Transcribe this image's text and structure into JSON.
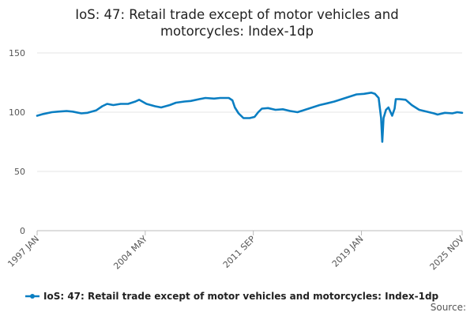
{
  "chart_data": {
    "type": "line",
    "title_lines": [
      "IoS: 47: Retail trade except of motor vehicles and",
      "motorcycles: Index-1dp"
    ],
    "xlabel": "",
    "ylabel": "",
    "ylim": [
      0,
      150
    ],
    "y_ticks": [
      0,
      50,
      100,
      150
    ],
    "x_range": [
      "1997-01",
      "2025-11"
    ],
    "x_ticks": [
      {
        "label": "1997 JAN",
        "date": "1997-01"
      },
      {
        "label": "2004 MAY",
        "date": "2004-05"
      },
      {
        "label": "2011 SEP",
        "date": "2011-09"
      },
      {
        "label": "2019 JAN",
        "date": "2019-01"
      },
      {
        "label": "2025 NOV",
        "date": "2025-11"
      }
    ],
    "grid": true,
    "legend_position": "bottom",
    "series": [
      {
        "name": "IoS: 47: Retail trade except of motor vehicles and motorcycles: Index-1dp",
        "color": "#0a7ec2",
        "points": [
          [
            "1997-01",
            97.0
          ],
          [
            "1997-06",
            98.5
          ],
          [
            "1998-01",
            100.0
          ],
          [
            "1998-06",
            100.5
          ],
          [
            "1999-01",
            101.0
          ],
          [
            "1999-06",
            100.5
          ],
          [
            "2000-01",
            99.0
          ],
          [
            "2000-06",
            99.5
          ],
          [
            "2001-01",
            101.5
          ],
          [
            "2001-06",
            105.0
          ],
          [
            "2001-10",
            107.0
          ],
          [
            "2002-03",
            106.0
          ],
          [
            "2002-09",
            107.0
          ],
          [
            "2003-03",
            107.0
          ],
          [
            "2003-09",
            109.0
          ],
          [
            "2003-12",
            110.5
          ],
          [
            "2004-06",
            107.0
          ],
          [
            "2005-01",
            105.0
          ],
          [
            "2005-06",
            104.0
          ],
          [
            "2006-01",
            106.0
          ],
          [
            "2006-06",
            108.0
          ],
          [
            "2007-01",
            109.0
          ],
          [
            "2007-06",
            109.5
          ],
          [
            "2008-01",
            111.0
          ],
          [
            "2008-06",
            112.0
          ],
          [
            "2009-01",
            111.5
          ],
          [
            "2009-06",
            112.0
          ],
          [
            "2010-01",
            112.0
          ],
          [
            "2010-04",
            110.0
          ],
          [
            "2010-06",
            104.0
          ],
          [
            "2010-09",
            99.0
          ],
          [
            "2011-01",
            95.0
          ],
          [
            "2011-06",
            95.0
          ],
          [
            "2011-10",
            96.0
          ],
          [
            "2012-01",
            100.0
          ],
          [
            "2012-04",
            103.0
          ],
          [
            "2012-09",
            103.5
          ],
          [
            "2013-03",
            102.0
          ],
          [
            "2013-09",
            102.5
          ],
          [
            "2014-03",
            101.0
          ],
          [
            "2014-09",
            100.0
          ],
          [
            "2015-03",
            102.0
          ],
          [
            "2015-09",
            104.0
          ],
          [
            "2016-03",
            106.0
          ],
          [
            "2016-09",
            107.5
          ],
          [
            "2017-03",
            109.0
          ],
          [
            "2017-09",
            111.0
          ],
          [
            "2018-03",
            113.0
          ],
          [
            "2018-09",
            115.0
          ],
          [
            "2019-03",
            115.5
          ],
          [
            "2019-09",
            116.5
          ],
          [
            "2019-12",
            115.5
          ],
          [
            "2020-03",
            112.0
          ],
          [
            "2020-05",
            95.0
          ],
          [
            "2020-06",
            75.0
          ],
          [
            "2020-07",
            95.0
          ],
          [
            "2020-09",
            102.0
          ],
          [
            "2020-11",
            104.0
          ],
          [
            "2021-02",
            97.0
          ],
          [
            "2021-04",
            103.0
          ],
          [
            "2021-05",
            111.0
          ],
          [
            "2021-08",
            111.0
          ],
          [
            "2022-01",
            110.5
          ],
          [
            "2022-06",
            106.0
          ],
          [
            "2022-12",
            102.0
          ],
          [
            "2023-06",
            100.5
          ],
          [
            "2023-12",
            99.0
          ],
          [
            "2024-03",
            98.0
          ],
          [
            "2024-09",
            99.5
          ],
          [
            "2025-03",
            99.0
          ],
          [
            "2025-07",
            100.0
          ],
          [
            "2025-11",
            99.5
          ]
        ]
      }
    ],
    "source_label": "Source:"
  }
}
